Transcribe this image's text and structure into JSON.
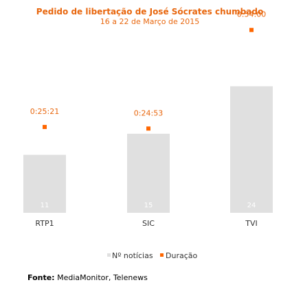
{
  "chart_data": {
    "type": "bar",
    "title": "Pedido de libertação de José Sócrates chumbado",
    "subtitle": "16 a 22 de Março de 2015",
    "categories": [
      "RTP1",
      "SIC",
      "TVI"
    ],
    "series": [
      {
        "name": "Nº notícias",
        "values": [
          11,
          15,
          24
        ],
        "color": "#e0e0e0"
      },
      {
        "name": "Duração",
        "values": [
          "0:25:21",
          "0:24:53",
          "0:54:00"
        ],
        "color": "#ff6600"
      }
    ],
    "ylim": [
      0,
      25
    ],
    "grid": false,
    "legend_position": "bottom"
  },
  "legend": {
    "bar_label": "Nº notícias",
    "marker_label": "Duração"
  },
  "source": {
    "prefix": "Fonte:",
    "text": " MediaMonitor, Telenews"
  }
}
